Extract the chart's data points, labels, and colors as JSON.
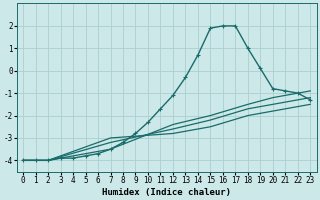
{
  "xlabel": "Humidex (Indice chaleur)",
  "xlim": [
    -0.5,
    23.5
  ],
  "ylim": [
    -4.5,
    3.0
  ],
  "xticks": [
    0,
    1,
    2,
    3,
    4,
    5,
    6,
    7,
    8,
    9,
    10,
    11,
    12,
    13,
    14,
    15,
    16,
    17,
    18,
    19,
    20,
    21,
    22,
    23
  ],
  "yticks": [
    -4,
    -3,
    -2,
    -1,
    0,
    1,
    2
  ],
  "bg_color": "#cce8e8",
  "grid_color": "#aacfcf",
  "line_color": "#1a6b6b",
  "curves": [
    {
      "x": [
        0,
        1,
        2,
        3,
        4,
        5,
        6,
        7,
        8,
        9,
        10,
        11,
        12,
        13,
        14,
        15,
        16,
        17,
        18,
        19,
        20,
        21,
        22,
        23
      ],
      "y": [
        -4.0,
        -4.0,
        -4.0,
        -3.9,
        -3.9,
        -3.8,
        -3.7,
        -3.5,
        -3.2,
        -2.8,
        -2.3,
        -1.7,
        -1.1,
        -0.3,
        0.7,
        1.9,
        2.0,
        2.0,
        1.0,
        0.1,
        -0.8,
        -0.9,
        -1.0,
        -1.3
      ],
      "marker": "+",
      "linestyle": "-",
      "linewidth": 1.0
    },
    {
      "x": [
        0,
        2,
        7,
        12,
        15,
        18,
        20,
        23
      ],
      "y": [
        -4.0,
        -4.0,
        -3.0,
        -2.8,
        -2.5,
        -2.0,
        -1.8,
        -1.5
      ],
      "marker": null,
      "linestyle": "-",
      "linewidth": 0.9
    },
    {
      "x": [
        0,
        2,
        7,
        12,
        15,
        18,
        20,
        23
      ],
      "y": [
        -4.0,
        -4.0,
        -3.2,
        -2.6,
        -2.2,
        -1.7,
        -1.5,
        -1.2
      ],
      "marker": null,
      "linestyle": "-",
      "linewidth": 0.9
    },
    {
      "x": [
        0,
        2,
        7,
        12,
        15,
        18,
        20,
        23
      ],
      "y": [
        -4.0,
        -4.0,
        -3.5,
        -2.4,
        -2.0,
        -1.5,
        -1.2,
        -0.9
      ],
      "marker": null,
      "linestyle": "-",
      "linewidth": 0.9
    }
  ],
  "font_family": "monospace",
  "label_fontsize": 6.5,
  "tick_fontsize": 5.5
}
